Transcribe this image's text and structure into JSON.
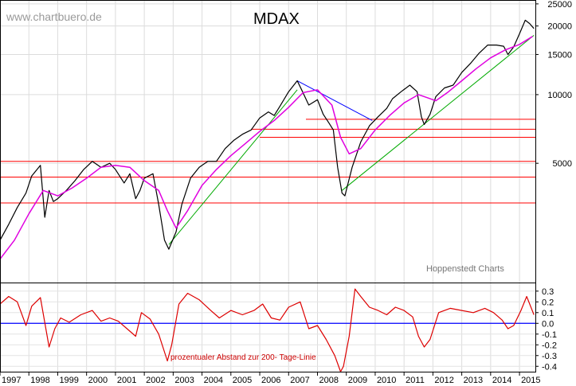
{
  "watermark": "www.chartbuero.de",
  "source": "Hoppenstedt Charts",
  "chart_data": [
    {
      "type": "line",
      "title": "MDAX",
      "y_scale": "log",
      "ylim": [
        1500,
        26000
      ],
      "yticks": [
        5000,
        10000,
        15000,
        20000,
        25000
      ],
      "xlim": [
        1997.0,
        2015.55
      ],
      "grid": true,
      "series": [
        {
          "name": "",
          "color": "#000000",
          "x": [
            1997.0,
            1997.3,
            1997.6,
            1997.9,
            1998.1,
            1998.4,
            1998.55,
            1998.7,
            1998.85,
            1999.0,
            1999.3,
            1999.6,
            1999.9,
            2000.2,
            2000.5,
            2000.8,
            2001.0,
            2001.3,
            2001.5,
            2001.7,
            2001.85,
            2002.0,
            2002.3,
            2002.5,
            2002.7,
            2002.85,
            2003.1,
            2003.3,
            2003.6,
            2003.9,
            2004.2,
            2004.5,
            2004.8,
            2005.1,
            2005.4,
            2005.7,
            2006.0,
            2006.3,
            2006.5,
            2006.7,
            2007.0,
            2007.3,
            2007.45,
            2007.7,
            2008.0,
            2008.2,
            2008.4,
            2008.55,
            2008.7,
            2008.85,
            2008.95,
            2009.2,
            2009.5,
            2009.8,
            2010.1,
            2010.4,
            2010.6,
            2010.9,
            2011.2,
            2011.45,
            2011.6,
            2011.7,
            2011.9,
            2012.1,
            2012.4,
            2012.7,
            2013.0,
            2013.3,
            2013.6,
            2013.9,
            2014.2,
            2014.45,
            2014.6,
            2014.8,
            2015.0,
            2015.2,
            2015.35,
            2015.5
          ],
          "values": [
            2300,
            2700,
            3200,
            3700,
            4400,
            4900,
            2900,
            3800,
            3400,
            3500,
            3800,
            4200,
            4700,
            5100,
            4800,
            5000,
            4700,
            4100,
            4500,
            3500,
            3800,
            4300,
            4500,
            3300,
            2300,
            2100,
            2500,
            3300,
            4300,
            4800,
            5100,
            5100,
            5800,
            6300,
            6700,
            7000,
            7900,
            8400,
            8100,
            8900,
            10300,
            11500,
            10500,
            9000,
            9500,
            8200,
            7500,
            7000,
            4800,
            3700,
            3600,
            4800,
            6200,
            7300,
            8000,
            8700,
            9600,
            10300,
            11000,
            10300,
            8000,
            7400,
            8200,
            9800,
            10700,
            11000,
            12500,
            13700,
            15200,
            16500,
            16500,
            16300,
            15000,
            16200,
            18500,
            21200,
            20500,
            19500
          ]
        },
        {
          "name": "200-Tage-Linie",
          "color": "#e000e0",
          "x": [
            1997.0,
            1997.5,
            1998.0,
            1998.5,
            1999.0,
            1999.5,
            2000.0,
            2000.5,
            2001.0,
            2001.5,
            2002.0,
            2002.5,
            2002.8,
            2003.1,
            2003.5,
            2004.0,
            2004.5,
            2005.0,
            2005.5,
            2006.0,
            2006.5,
            2007.0,
            2007.5,
            2008.0,
            2008.5,
            2008.8,
            2009.1,
            2009.5,
            2010.0,
            2010.5,
            2011.0,
            2011.5,
            2011.8,
            2012.1,
            2012.5,
            2013.0,
            2013.5,
            2014.0,
            2014.5,
            2015.0,
            2015.45
          ],
          "values": [
            1900,
            2300,
            3000,
            3800,
            3600,
            3900,
            4300,
            4800,
            4900,
            4800,
            4200,
            3800,
            3100,
            2600,
            3100,
            4000,
            4700,
            5400,
            6100,
            6900,
            7700,
            8800,
            10200,
            10500,
            9000,
            6500,
            5500,
            5800,
            7000,
            8100,
            9200,
            10000,
            9700,
            9400,
            10200,
            11500,
            13000,
            14500,
            15700,
            16600,
            18000
          ]
        }
      ],
      "trendlines": [
        {
          "color": "#00aa00",
          "x": [
            2002.85,
            2007.3
          ],
          "values": [
            2200,
            10500
          ]
        },
        {
          "color": "#00aa00",
          "x": [
            2008.85,
            2015.5
          ],
          "values": [
            3800,
            18200
          ]
        },
        {
          "color": "#0000ff",
          "x": [
            2007.3,
            2009.9
          ],
          "values": [
            11500,
            7700
          ]
        }
      ],
      "hlines": [
        {
          "color": "#ff0000",
          "value": 3350,
          "from": 1997.0
        },
        {
          "color": "#ff0000",
          "value": 4350,
          "from": 1997.0
        },
        {
          "color": "#ff0000",
          "value": 5100,
          "from": 1997.0
        },
        {
          "color": "#ff0000",
          "value": 6500,
          "from": 2006.0
        },
        {
          "color": "#ff0000",
          "value": 7050,
          "from": 2005.7
        },
        {
          "color": "#ff0000",
          "value": 7800,
          "from": 2007.6
        }
      ]
    },
    {
      "type": "line",
      "annotation": "prozentualer Abstand zur 200- Tage-Linie",
      "ylim": [
        -0.45,
        0.38
      ],
      "yticks": [
        0.3,
        0.2,
        0.1,
        0.0,
        -0.1,
        -0.2,
        -0.3,
        -0.4
      ],
      "ytick_labels": [
        "0.3",
        "0.2",
        "0.1",
        "0.0",
        "-0.1",
        "-0.2",
        "-0.3",
        "-0.4"
      ],
      "zero_line_color": "#0000ff",
      "series": [
        {
          "name": "",
          "color": "#dd0000",
          "x": [
            1997.0,
            1997.3,
            1997.6,
            1997.9,
            1998.1,
            1998.4,
            1998.7,
            1998.9,
            1999.1,
            1999.4,
            1999.8,
            2000.2,
            2000.5,
            2000.8,
            2001.1,
            2001.4,
            2001.7,
            2001.9,
            2002.2,
            2002.5,
            2002.8,
            2002.95,
            2003.2,
            2003.5,
            2003.9,
            2004.3,
            2004.6,
            2005.0,
            2005.4,
            2005.8,
            2006.1,
            2006.4,
            2006.7,
            2007.0,
            2007.4,
            2007.7,
            2008.0,
            2008.3,
            2008.6,
            2008.8,
            2008.9,
            2009.1,
            2009.3,
            2009.5,
            2009.8,
            2010.1,
            2010.4,
            2010.7,
            2011.0,
            2011.3,
            2011.5,
            2011.7,
            2011.9,
            2012.2,
            2012.6,
            2013.0,
            2013.4,
            2013.8,
            2014.1,
            2014.4,
            2014.6,
            2014.8,
            2015.05,
            2015.25,
            2015.5
          ],
          "values": [
            0.18,
            0.25,
            0.2,
            -0.02,
            0.16,
            0.24,
            -0.22,
            -0.05,
            0.05,
            0.01,
            0.08,
            0.12,
            0.02,
            0.05,
            0.02,
            -0.05,
            -0.12,
            0.1,
            0.04,
            -0.1,
            -0.35,
            -0.2,
            0.18,
            0.28,
            0.22,
            0.12,
            0.05,
            0.12,
            0.08,
            0.12,
            0.18,
            0.05,
            0.03,
            0.15,
            0.2,
            -0.05,
            -0.02,
            -0.15,
            -0.3,
            -0.45,
            -0.4,
            -0.12,
            0.32,
            0.25,
            0.15,
            0.12,
            0.08,
            0.15,
            0.12,
            0.06,
            -0.12,
            -0.22,
            -0.15,
            0.1,
            0.14,
            0.12,
            0.1,
            0.14,
            0.1,
            0.03,
            -0.05,
            -0.02,
            0.12,
            0.25,
            0.08
          ]
        }
      ]
    }
  ],
  "x_axis": {
    "labels": [
      "1997",
      "1998",
      "1999",
      "2000",
      "2001",
      "2002",
      "2003",
      "2004",
      "2005",
      "2006",
      "2007",
      "2008",
      "2009",
      "2010",
      "2011",
      "2012",
      "2013",
      "2014",
      "2015"
    ]
  }
}
